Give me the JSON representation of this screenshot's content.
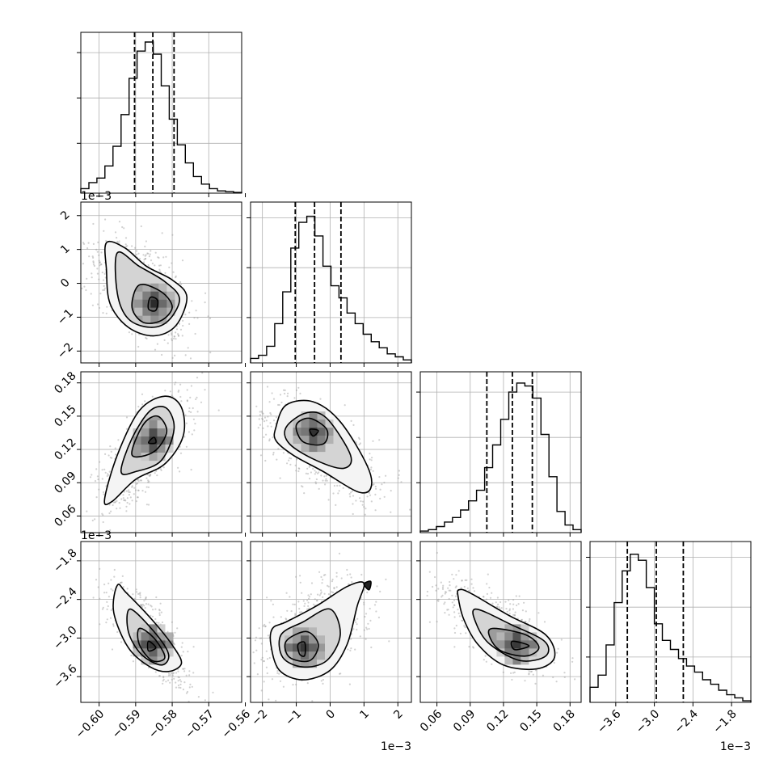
{
  "chart_data": {
    "type": "corner",
    "n_params": 4,
    "grid": true,
    "params": [
      {
        "range": [
          -0.605,
          -0.561
        ],
        "ticks": [
          -0.6,
          -0.59,
          -0.58,
          -0.57,
          -0.56
        ],
        "tick_labels": [
          "−0.60",
          "−0.59",
          "−0.58",
          "−0.57",
          "−0.56"
        ],
        "offset_label": "",
        "quantiles": [
          -0.5903,
          -0.5853,
          -0.5795
        ],
        "hist": [
          0.03,
          0.07,
          0.1,
          0.18,
          0.31,
          0.52,
          0.76,
          0.94,
          1.0,
          0.92,
          0.71,
          0.49,
          0.32,
          0.2,
          0.11,
          0.06,
          0.03,
          0.015,
          0.01,
          0.005
        ],
        "hist_yticks": [
          0.33,
          0.63,
          0.93
        ]
      },
      {
        "range": [
          -2.35,
          2.4
        ],
        "ticks": [
          -2,
          -1,
          0,
          1,
          2
        ],
        "tick_labels": [
          "−2",
          "−1",
          "0",
          "1",
          "2"
        ],
        "offset_label": "1e−3",
        "quantiles": [
          -1.03,
          -0.46,
          0.32
        ],
        "hist": [
          0.03,
          0.05,
          0.11,
          0.26,
          0.47,
          0.76,
          0.93,
          0.97,
          0.84,
          0.64,
          0.51,
          0.43,
          0.33,
          0.26,
          0.19,
          0.14,
          0.1,
          0.06,
          0.04,
          0.02
        ],
        "hist_yticks": [
          0.3,
          0.63,
          0.96
        ]
      },
      {
        "range": [
          0.045,
          0.19
        ],
        "ticks": [
          0.06,
          0.09,
          0.12,
          0.15,
          0.18
        ],
        "tick_labels": [
          "0.06",
          "0.09",
          "0.12",
          "0.15",
          "0.18"
        ],
        "offset_label": "",
        "quantiles": [
          0.105,
          0.128,
          0.146
        ],
        "hist": [
          0.01,
          0.02,
          0.04,
          0.07,
          0.1,
          0.15,
          0.21,
          0.28,
          0.43,
          0.58,
          0.75,
          0.93,
          0.99,
          0.97,
          0.89,
          0.65,
          0.37,
          0.14,
          0.05,
          0.02
        ],
        "hist_yticks": [
          0.33,
          0.63,
          0.93
        ]
      },
      {
        "range": [
          -4.0,
          -1.5
        ],
        "ticks": [
          -3.6,
          -3.0,
          -2.4,
          -1.8
        ],
        "tick_labels": [
          "−3.6",
          "−3.0",
          "−2.4",
          "−1.8"
        ],
        "offset_label": "1e−3",
        "quantiles": [
          -3.42,
          -2.97,
          -2.55
        ],
        "hist": [
          0.1,
          0.18,
          0.38,
          0.66,
          0.87,
          0.98,
          0.94,
          0.76,
          0.52,
          0.41,
          0.35,
          0.29,
          0.24,
          0.2,
          0.15,
          0.12,
          0.08,
          0.05,
          0.03,
          0.01
        ],
        "hist_yticks": [
          0.3,
          0.63,
          0.96
        ]
      }
    ],
    "contours": [
      {
        "i": 1,
        "j": 0,
        "center": [
          -0.5848,
          -0.6
        ],
        "levels": [
          [
            [
              -0.598,
              1.2
            ],
            [
              -0.593,
              1.05
            ],
            [
              -0.587,
              0.5
            ],
            [
              -0.58,
              0.1
            ],
            [
              -0.576,
              -0.4
            ],
            [
              -0.579,
              -1.25
            ],
            [
              -0.585,
              -1.55
            ],
            [
              -0.592,
              -1.3
            ],
            [
              -0.597,
              -0.6
            ],
            [
              -0.598,
              0.4
            ]
          ],
          [
            [
              -0.595,
              0.9
            ],
            [
              -0.589,
              0.5
            ],
            [
              -0.582,
              0.05
            ],
            [
              -0.578,
              -0.45
            ],
            [
              -0.581,
              -1.1
            ],
            [
              -0.586,
              -1.3
            ],
            [
              -0.592,
              -1.05
            ],
            [
              -0.595,
              -0.3
            ]
          ],
          [
            [
              -0.589,
              -0.05
            ],
            [
              -0.583,
              -0.25
            ],
            [
              -0.58,
              -0.7
            ],
            [
              -0.583,
              -1.1
            ],
            [
              -0.588,
              -1.15
            ],
            [
              -0.591,
              -0.7
            ]
          ],
          [
            [
              -0.586,
              -0.42
            ],
            [
              -0.584,
              -0.5
            ],
            [
              -0.5845,
              -0.8
            ],
            [
              -0.5865,
              -0.75
            ]
          ]
        ]
      },
      {
        "i": 2,
        "j": 0,
        "center": [
          -0.5852,
          0.128
        ],
        "levels": [
          [
            [
              -0.5985,
              0.075
            ],
            [
              -0.595,
              0.115
            ],
            [
              -0.589,
              0.155
            ],
            [
              -0.582,
              0.168
            ],
            [
              -0.5775,
              0.158
            ],
            [
              -0.577,
              0.132
            ],
            [
              -0.582,
              0.107
            ],
            [
              -0.59,
              0.093
            ],
            [
              -0.5965,
              0.073
            ]
          ],
          [
            [
              -0.594,
              0.1
            ],
            [
              -0.591,
              0.13
            ],
            [
              -0.586,
              0.155
            ],
            [
              -0.5815,
              0.157
            ],
            [
              -0.5795,
              0.138
            ],
            [
              -0.583,
              0.11
            ],
            [
              -0.59,
              0.1
            ]
          ],
          [
            [
              -0.591,
              0.115
            ],
            [
              -0.588,
              0.142
            ],
            [
              -0.584,
              0.15
            ],
            [
              -0.5815,
              0.136
            ],
            [
              -0.585,
              0.118
            ]
          ],
          [
            [
              -0.5865,
              0.126
            ],
            [
              -0.585,
              0.131
            ],
            [
              -0.5845,
              0.126
            ]
          ]
        ]
      },
      {
        "i": 2,
        "j": 1,
        "center": [
          -0.5,
          0.136
        ],
        "levels": [
          [
            [
              -1.6,
              0.14
            ],
            [
              -1.3,
              0.16
            ],
            [
              -0.5,
              0.163
            ],
            [
              0.3,
              0.145
            ],
            [
              1.1,
              0.105
            ],
            [
              1.2,
              0.085
            ],
            [
              0.8,
              0.082
            ],
            [
              -0.2,
              0.1
            ],
            [
              -1.1,
              0.115
            ],
            [
              -1.6,
              0.128
            ]
          ],
          [
            [
              -1.3,
              0.14
            ],
            [
              -0.7,
              0.153
            ],
            [
              -0.1,
              0.148
            ],
            [
              0.6,
              0.115
            ],
            [
              0.4,
              0.103
            ],
            [
              -0.4,
              0.11
            ],
            [
              -1.2,
              0.125
            ]
          ],
          [
            [
              -1.0,
              0.142
            ],
            [
              -0.6,
              0.148
            ],
            [
              -0.1,
              0.138
            ],
            [
              -0.2,
              0.125
            ],
            [
              -0.8,
              0.127
            ]
          ],
          [
            [
              -0.6,
              0.138
            ],
            [
              -0.35,
              0.137
            ],
            [
              -0.5,
              0.132
            ]
          ]
        ]
      },
      {
        "i": 3,
        "j": 0,
        "center": [
          -0.5852,
          -3.1
        ],
        "levels": [
          [
            [
              -0.595,
              -2.18
            ],
            [
              -0.5925,
              -2.3
            ],
            [
              -0.585,
              -2.75
            ],
            [
              -0.5795,
              -3.15
            ],
            [
              -0.5775,
              -3.4
            ],
            [
              -0.581,
              -3.52
            ],
            [
              -0.586,
              -3.45
            ],
            [
              -0.592,
              -3.15
            ],
            [
              -0.596,
              -2.6
            ]
          ],
          [
            [
              -0.5915,
              -2.55
            ],
            [
              -0.585,
              -2.9
            ],
            [
              -0.581,
              -3.25
            ],
            [
              -0.583,
              -3.42
            ],
            [
              -0.5885,
              -3.25
            ],
            [
              -0.592,
              -2.9
            ]
          ],
          [
            [
              -0.589,
              -2.85
            ],
            [
              -0.585,
              -3.0
            ],
            [
              -0.582,
              -3.3
            ],
            [
              -0.5855,
              -3.35
            ],
            [
              -0.589,
              -3.1
            ]
          ],
          [
            [
              -0.5865,
              -3.05
            ],
            [
              -0.5845,
              -3.15
            ],
            [
              -0.5865,
              -3.2
            ]
          ]
        ]
      },
      {
        "i": 3,
        "j": 1,
        "center": [
          -0.75,
          -3.15
        ],
        "levels": [
          [
            [
              -1.7,
              -2.85
            ],
            [
              -1.3,
              -2.75
            ],
            [
              -0.4,
              -2.5
            ],
            [
              0.5,
              -2.2
            ],
            [
              1.0,
              -2.15
            ],
            [
              0.8,
              -2.5
            ],
            [
              0.5,
              -3.1
            ],
            [
              0.0,
              -3.5
            ],
            [
              -0.8,
              -3.65
            ],
            [
              -1.5,
              -3.5
            ],
            [
              -1.75,
              -3.1
            ]
          ],
          [
            [
              -1.45,
              -2.95
            ],
            [
              -0.8,
              -2.75
            ],
            [
              0.0,
              -2.55
            ],
            [
              0.3,
              -2.95
            ],
            [
              -0.1,
              -3.35
            ],
            [
              -0.8,
              -3.45
            ],
            [
              -1.4,
              -3.3
            ]
          ],
          [
            [
              -1.3,
              -3.05
            ],
            [
              -0.7,
              -2.9
            ],
            [
              -0.35,
              -3.1
            ],
            [
              -0.6,
              -3.35
            ],
            [
              -1.2,
              -3.3
            ]
          ],
          [
            [
              -0.95,
              -3.1
            ],
            [
              -0.75,
              -3.07
            ],
            [
              -0.75,
              -3.27
            ],
            [
              -0.9,
              -3.25
            ]
          ],
          [
            [
              1.0,
              -2.16
            ],
            [
              1.2,
              -2.12
            ],
            [
              1.15,
              -2.25
            ]
          ]
        ]
      },
      {
        "i": 3,
        "j": 2,
        "center": [
          0.132,
          -3.1
        ],
        "levels": [
          [
            [
              0.08,
              -2.25
            ],
            [
              0.09,
              -2.3
            ],
            [
              0.125,
              -2.65
            ],
            [
              0.158,
              -2.95
            ],
            [
              0.166,
              -3.3
            ],
            [
              0.15,
              -3.48
            ],
            [
              0.12,
              -3.42
            ],
            [
              0.097,
              -3.1
            ],
            [
              0.084,
              -2.7
            ],
            [
              0.079,
              -2.35
            ]
          ],
          [
            [
              0.095,
              -2.55
            ],
            [
              0.128,
              -2.8
            ],
            [
              0.157,
              -3.05
            ],
            [
              0.158,
              -3.28
            ],
            [
              0.135,
              -3.35
            ],
            [
              0.108,
              -3.1
            ],
            [
              0.096,
              -2.8
            ]
          ],
          [
            [
              0.11,
              -2.85
            ],
            [
              0.14,
              -2.95
            ],
            [
              0.152,
              -3.15
            ],
            [
              0.14,
              -3.28
            ],
            [
              0.118,
              -3.2
            ],
            [
              0.108,
              -3.0
            ]
          ],
          [
            [
              0.128,
              -3.05
            ],
            [
              0.143,
              -3.12
            ],
            [
              0.13,
              -3.18
            ]
          ]
        ]
      }
    ]
  }
}
